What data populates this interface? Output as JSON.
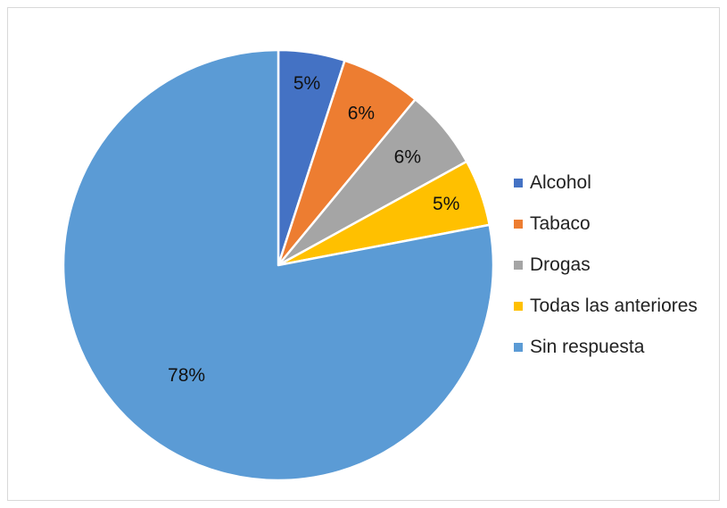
{
  "chart_data": {
    "type": "pie",
    "title": "",
    "start_angle_deg": 0,
    "direction": "clockwise",
    "legend_position": "right",
    "series": [
      {
        "name": "Alcohol",
        "value": 5,
        "label": "5%",
        "color": "#4472C4"
      },
      {
        "name": "Tabaco",
        "value": 6,
        "label": "6%",
        "color": "#ED7D31"
      },
      {
        "name": "Drogas",
        "value": 6,
        "label": "6%",
        "color": "#A5A5A5"
      },
      {
        "name": "Todas las anteriores",
        "value": 5,
        "label": "5%",
        "color": "#FFC000"
      },
      {
        "name": "Sin respuesta",
        "value": 78,
        "label": "78%",
        "color": "#5B9BD5"
      }
    ]
  }
}
